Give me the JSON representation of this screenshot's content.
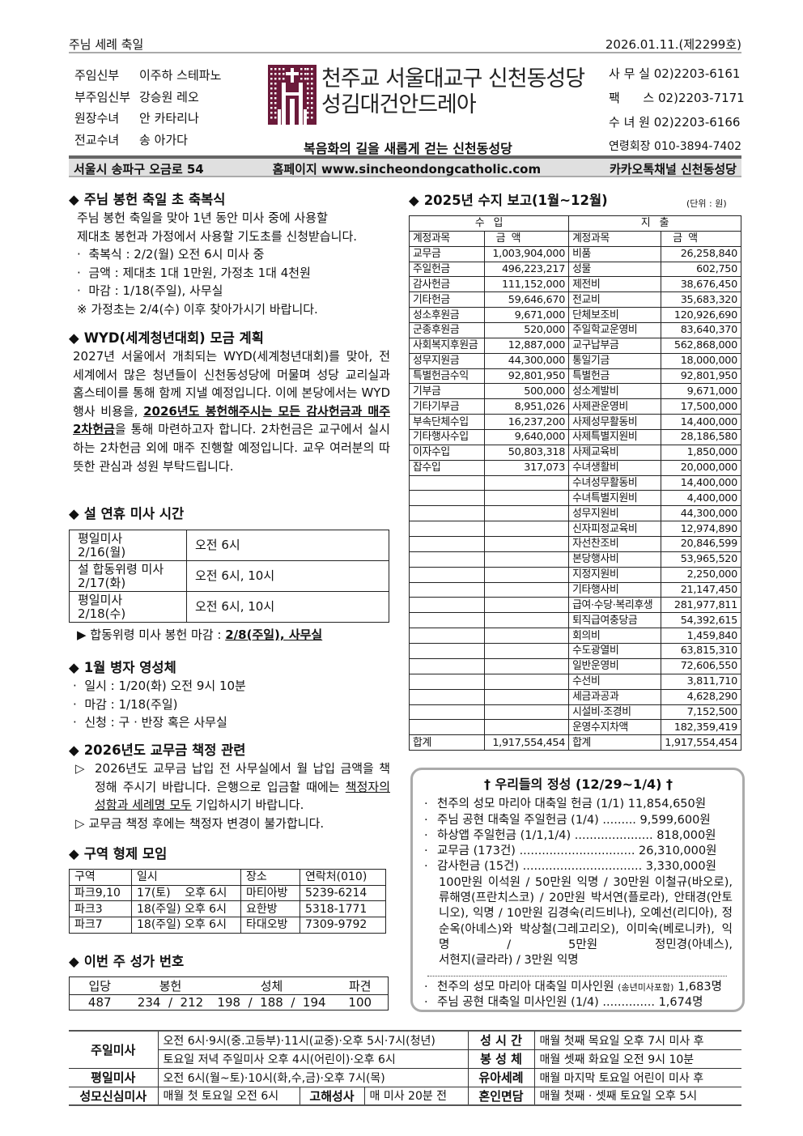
{
  "header": {
    "feast": "주님 세례 축일",
    "date": "2026.01.11.(제2299호)",
    "staff": [
      {
        "role": "주임신부",
        "name": "이주하 스테파노"
      },
      {
        "role": "부주임신부",
        "name": "강승원 레오"
      },
      {
        "role": "원장수녀",
        "name": "안 카타리나"
      },
      {
        "role": "전교수녀",
        "name": "송 아가다"
      }
    ],
    "church_line1": "천주교 서울대교구 신천동성당",
    "church_line2": "성김대건안드레아",
    "motto": "복음화의 길을 새롭게 걷는 신천동성당",
    "contacts": [
      {
        "label": "사 무 실",
        "value": "02)2203-6161"
      },
      {
        "label": "팩      스",
        "value": "02)2203-7171"
      },
      {
        "label": "수 녀 원",
        "value": "02)2203-6166"
      },
      {
        "label": "연령회장",
        "value": "010-3894-7402"
      }
    ],
    "address": "서울시 송파구 오금로 54",
    "homepage": "홈페이지 www.sincheondongcatholic.com",
    "kakao": "카카오톡채널 신천동성당",
    "logo_color": "#6b1a3a"
  },
  "candle": {
    "title": "주님 봉헌 축일 초 축복식",
    "intro": [
      "주님 봉헌 축일을 맞아 1년 동안 미사 중에 사용할",
      "제대초 봉헌과 가정에서 사용할 기도초를 신청받습니다."
    ],
    "items": [
      "축복식 : 2/2(월) 오전 6시 미사 중",
      "금액 : 제대초 1대 1만원, 가정초 1대 4천원",
      "마감 : 1/18(주일), 사무실"
    ],
    "note": "※ 가정초는 2/4(수) 이후 찾아가시기 바랍니다."
  },
  "wyd": {
    "title": "WYD(세계청년대회) 모금 계획",
    "p1": "2027년 서울에서 개최되는 WYD(세계청년대회)를 맞아, 전 세계에서 많은 청년들이 신천동성당에 머물며 성당 교리실과 홈스테이를 통해 함께 지낼 예정입니다. 이에 본당에서는 WYD 행사 비용을, ",
    "emph": "2026년도 봉헌해주시는 모든 감사헌금과 매주 2차헌금",
    "p2": "을 통해 마련하고자 합니다. 2차헌금은 교구에서 실시하는 2차헌금 외에 매주 진행할 예정입니다. 교우 여러분의 따뜻한 관심과 성원 부탁드립니다."
  },
  "lunar": {
    "title": "설 연휴 미사 시간",
    "rows": [
      {
        "name": "평일미사",
        "date": "2/16(월)",
        "time": "오전 6시"
      },
      {
        "name": "설 합동위령 미사",
        "date": "2/17(화)",
        "time": "오전 6시, 10시"
      },
      {
        "name": "평일미사",
        "date": "2/18(수)",
        "time": "오전 6시, 10시"
      }
    ],
    "note": "합동위령 미사 봉헌 마감 : ",
    "note_emph": "2/8(주일), 사무실"
  },
  "sick": {
    "title": "1월 병자 영성체",
    "items": [
      "일시 : 1/20(화) 오전 9시 10분",
      "마감 : 1/18(주일)",
      "신청 : 구 · 반장 혹은 사무실"
    ]
  },
  "dues": {
    "title": "2026년도 교무금 책정 관련",
    "item1a": "2026년도 교무금 납입 전 사무실에서 월 납입 금액을 책정해 주시기 바랍니다. 은행으로 입금할 때에는 ",
    "item1u": "책정자의 성함과 세례명 모두",
    "item1b": " 기입하시기 바랍니다.",
    "item2": "교무금 책정 후에는 책정자 변경이 불가합니다."
  },
  "district": {
    "title": "구역 형제 모임",
    "headers": [
      "구역",
      "일시",
      "장소",
      "연락처(010)"
    ],
    "rows": [
      [
        "파크9,10",
        "17(토)    오후 6시",
        "마티아방",
        "5239-6214"
      ],
      [
        "파크3",
        "18(주일) 오후 6시",
        "요한방",
        "5318-1771"
      ],
      [
        "파크7",
        "18(주일) 오후 6시",
        "타대오방",
        "7309-9792"
      ]
    ]
  },
  "hymns": {
    "title": "이번 주 성가 번호",
    "headers": [
      "입당",
      "봉헌",
      "성체",
      "파견"
    ],
    "values": [
      "487",
      "234  /  212",
      "198  /  188  /  194",
      "100"
    ]
  },
  "finance": {
    "title": "2025년 수지 보고(1월~12월)",
    "unit": "(단위 : 원)",
    "income_label": "수   입",
    "expense_label": "지   출",
    "col_account": "계정과목",
    "col_amount": "금  액",
    "income": [
      [
        "교무금",
        "1,003,904,000"
      ],
      [
        "주일헌금",
        "496,223,217"
      ],
      [
        "감사헌금",
        "111,152,000"
      ],
      [
        "기타헌금",
        "59,646,670"
      ],
      [
        "성소후원금",
        "9,671,000"
      ],
      [
        "군종후원금",
        "520,000"
      ],
      [
        "사회복지후원금",
        "12,887,000"
      ],
      [
        "성무지원금",
        "44,300,000"
      ],
      [
        "특별헌금수익",
        "92,801,950"
      ],
      [
        "기부금",
        "500,000"
      ],
      [
        "기타기부금",
        "8,951,026"
      ],
      [
        "부속단체수입",
        "16,237,200"
      ],
      [
        "기타행사수입",
        "9,640,000"
      ],
      [
        "이자수입",
        "50,803,318"
      ],
      [
        "잡수입",
        "317,073"
      ]
    ],
    "expense": [
      [
        "비품",
        "26,258,840"
      ],
      [
        "성물",
        "602,750"
      ],
      [
        "제전비",
        "38,676,450"
      ],
      [
        "전교비",
        "35,683,320"
      ],
      [
        "단체보조비",
        "120,926,690"
      ],
      [
        "주일학교운영비",
        "83,640,370"
      ],
      [
        "교구납부금",
        "562,868,000"
      ],
      [
        "통일기금",
        "18,000,000"
      ],
      [
        "특별헌금",
        "92,801,950"
      ],
      [
        "성소계발비",
        "9,671,000"
      ],
      [
        "사제관운영비",
        "17,500,000"
      ],
      [
        "사제성무활동비",
        "14,400,000"
      ],
      [
        "사제특별지원비",
        "28,186,580"
      ],
      [
        "사제교육비",
        "1,850,000"
      ],
      [
        "수녀생활비",
        "20,000,000"
      ],
      [
        "수녀성무활동비",
        "14,400,000"
      ],
      [
        "수녀특별지원비",
        "4,400,000"
      ],
      [
        "성무지원비",
        "44,300,000"
      ],
      [
        "신자피정교육비",
        "12,974,890"
      ],
      [
        "자선찬조비",
        "20,846,599"
      ],
      [
        "본당행사비",
        "53,965,520"
      ],
      [
        "지정지원비",
        "2,250,000"
      ],
      [
        "기타행사비",
        "21,147,450"
      ],
      [
        "급여·수당·복리후생",
        "281,977,811"
      ],
      [
        "퇴직급여충당금",
        "54,392,615"
      ],
      [
        "회의비",
        "1,459,840"
      ],
      [
        "수도광열비",
        "63,815,310"
      ],
      [
        "일반운영비",
        "72,606,550"
      ],
      [
        "수선비",
        "3,811,710"
      ],
      [
        "세금과공과",
        "4,628,290"
      ],
      [
        "시설비·조경비",
        "7,152,500"
      ],
      [
        "운영수지차액",
        "182,359,419"
      ]
    ],
    "total_label": "합계",
    "income_total": "1,917,554,454",
    "expense_total": "1,917,554,454"
  },
  "offering": {
    "title": "† 우리들의 정성 (12/29~1/4) †",
    "items": [
      "천주의 성모 마리아 대축일 헌금 (1/1)  11,854,650원",
      "주님 공현 대축일 주일헌금 (1/4) ......... 9,599,600원",
      "하상앱 주일헌금 (1/1,1/4) ..................... 818,000원",
      "교무금 (173건) ............................... 26,310,000원",
      "감사헌금 (15건) ................................ 3,330,000원"
    ],
    "details": "100만원 이석원 / 50만원 익명 / 30만원 이철규(바오로), 류해영(프란치스코) / 20만원 박서연(플로라), 안태경(안토니오), 익명 / 10만원 김경숙(리드비나), 오예선(리디아), 정순옥(아녜스)와 박상철(그레고리오), 이미숙(베로니카), 익명 / 5만원 정민경(아녜스),",
    "details_last": "서현지(글라라) / 3만원 익명",
    "att1": "천주의 성모 마리아 대축일 미사인원 ",
    "att1_small": "(송년미사포함)",
    "att1_value": " 1,683명",
    "att2": "주님 공현 대축일 미사인원 (1/4) .............. 1,674명"
  },
  "schedule": {
    "sunday_label": "주일미사",
    "sunday1": "오전 6시·9시(중.고등부)·11시(교중)·오후 5시·7시(청년)",
    "sunday2": "토요일 저녁 주일미사 오후 4시(어린이)·오후 6시",
    "weekday_label": "평일미사",
    "weekday": "오전 6시(월~토)·10시(화,수,금)·오후 7시(목)",
    "marian_label": "성모신심미사",
    "marian": "매월 첫 토요일 오전 6시",
    "confession_label": "고해성사",
    "confession": "매 미사 20분 전",
    "holy_hour_label": "성 시 간",
    "holy_hour": "매월 첫째 목요일 오후 7시 미사 후",
    "adoration_label": "봉 성 체",
    "adoration": "매월 셋째 화요일 오전 9시 10분",
    "baptism_label": "유아세례",
    "baptism": "매월 마지막 토요일 어린이 미사 후",
    "marriage_label": "혼인면담",
    "marriage": "매월 첫째 · 셋째 토요일 오후 5시"
  }
}
